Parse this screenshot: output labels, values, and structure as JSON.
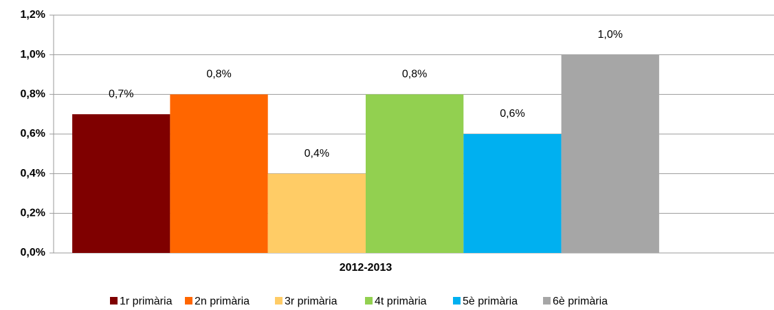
{
  "chart_data": {
    "type": "bar",
    "categories": [
      "2012-2013"
    ],
    "series": [
      {
        "name": "1r primària",
        "color": "#7f0000",
        "values": [
          0.7
        ],
        "value_labels": [
          "0,7%"
        ]
      },
      {
        "name": "2n primària",
        "color": "#ff6600",
        "values": [
          0.8
        ],
        "value_labels": [
          "0,8%"
        ]
      },
      {
        "name": "3r primària",
        "color": "#ffcc66",
        "values": [
          0.4
        ],
        "value_labels": [
          "0,4%"
        ]
      },
      {
        "name": "4t primària",
        "color": "#92d050",
        "values": [
          0.8
        ],
        "value_labels": [
          "0,8%"
        ]
      },
      {
        "name": "5è primària",
        "color": "#00b0f0",
        "values": [
          0.6
        ],
        "value_labels": [
          "0,6%"
        ]
      },
      {
        "name": "6è primària",
        "color": "#a6a6a6",
        "values": [
          1.0
        ],
        "value_labels": [
          "1,0%"
        ]
      }
    ],
    "ylim": [
      0,
      1.2
    ],
    "yticks": [
      {
        "value": 0,
        "label": "0,0%"
      },
      {
        "value": 0.2,
        "label": "0,2%"
      },
      {
        "value": 0.4,
        "label": "0,4%"
      },
      {
        "value": 0.6,
        "label": "0,6%"
      },
      {
        "value": 0.8,
        "label": "0,8%"
      },
      {
        "value": 1.0,
        "label": "1,0%"
      },
      {
        "value": 1.2,
        "label": "1,2%"
      }
    ],
    "grid": true,
    "legend": "bottom"
  }
}
